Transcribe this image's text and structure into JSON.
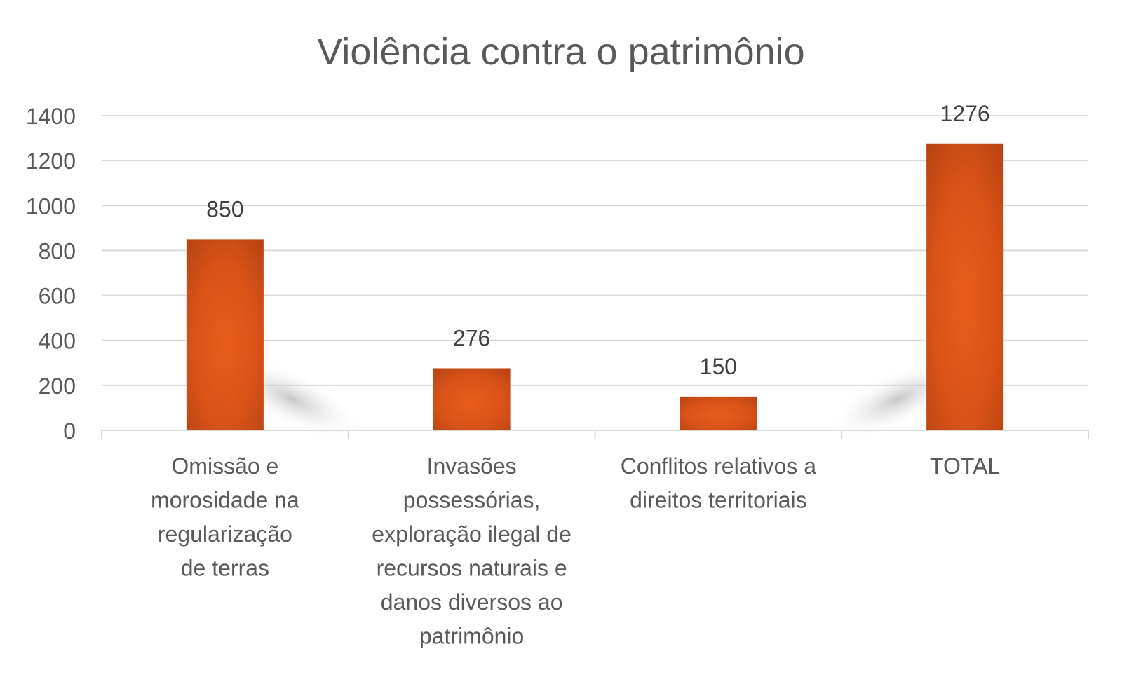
{
  "chart_data": {
    "type": "bar",
    "title": "Violência contra o patrimônio",
    "categories": [
      [
        "Omissão e",
        "morosidade na",
        "regularização",
        "de terras"
      ],
      [
        "Invasões",
        "possessórias,",
        "exploração ilegal de",
        "recursos naturais e",
        "danos diversos ao",
        "patrimônio"
      ],
      [
        "Conflitos relativos a",
        "direitos territoriais"
      ],
      [
        "TOTAL"
      ]
    ],
    "values": [
      850,
      276,
      150,
      1276
    ],
    "data_labels": [
      "850",
      "276",
      "150",
      "1276"
    ],
    "yticks": [
      "0",
      "200",
      "400",
      "600",
      "800",
      "1000",
      "1200",
      "1400"
    ],
    "ylim": [
      0,
      1400
    ],
    "xlabel": "",
    "ylabel": "",
    "grid": true,
    "legend": "none",
    "colors": {
      "bar_center": "#e85d1a",
      "bar_edge": "#b44212",
      "grid": "#d9d9d9",
      "text": "#595959",
      "label": "#404040"
    }
  }
}
